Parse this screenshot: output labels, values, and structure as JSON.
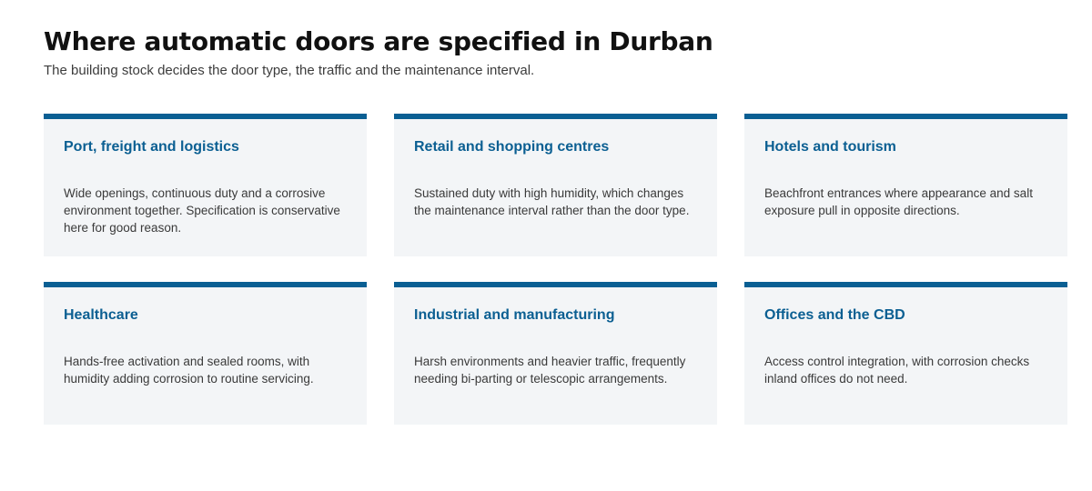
{
  "header": {
    "title": "Where automatic doors are specified in Durban",
    "subtitle": "The building stock decides the door type, the traffic and the maintenance interval."
  },
  "colors": {
    "accent": "#0a5f93",
    "card_background": "#f3f5f7",
    "title_text": "#111111",
    "body_text": "#3a3a3a"
  },
  "cards": [
    {
      "title": "Port, freight and logistics",
      "text": "Wide openings, continuous duty and a corrosive environment together. Specification is conservative here for good reason."
    },
    {
      "title": "Retail and shopping centres",
      "text": "Sustained duty with high humidity, which changes the maintenance interval rather than the door type."
    },
    {
      "title": "Hotels and tourism",
      "text": "Beachfront entrances where appearance and salt exposure pull in opposite directions."
    },
    {
      "title": "Healthcare",
      "text": "Hands-free activation and sealed rooms, with humidity adding corrosion to routine servicing."
    },
    {
      "title": "Industrial and manufacturing",
      "text": "Harsh environments and heavier traffic, frequently needing bi-parting or telescopic arrangements."
    },
    {
      "title": "Offices and the CBD",
      "text": "Access control integration, with corrosion checks inland offices do not need."
    }
  ]
}
